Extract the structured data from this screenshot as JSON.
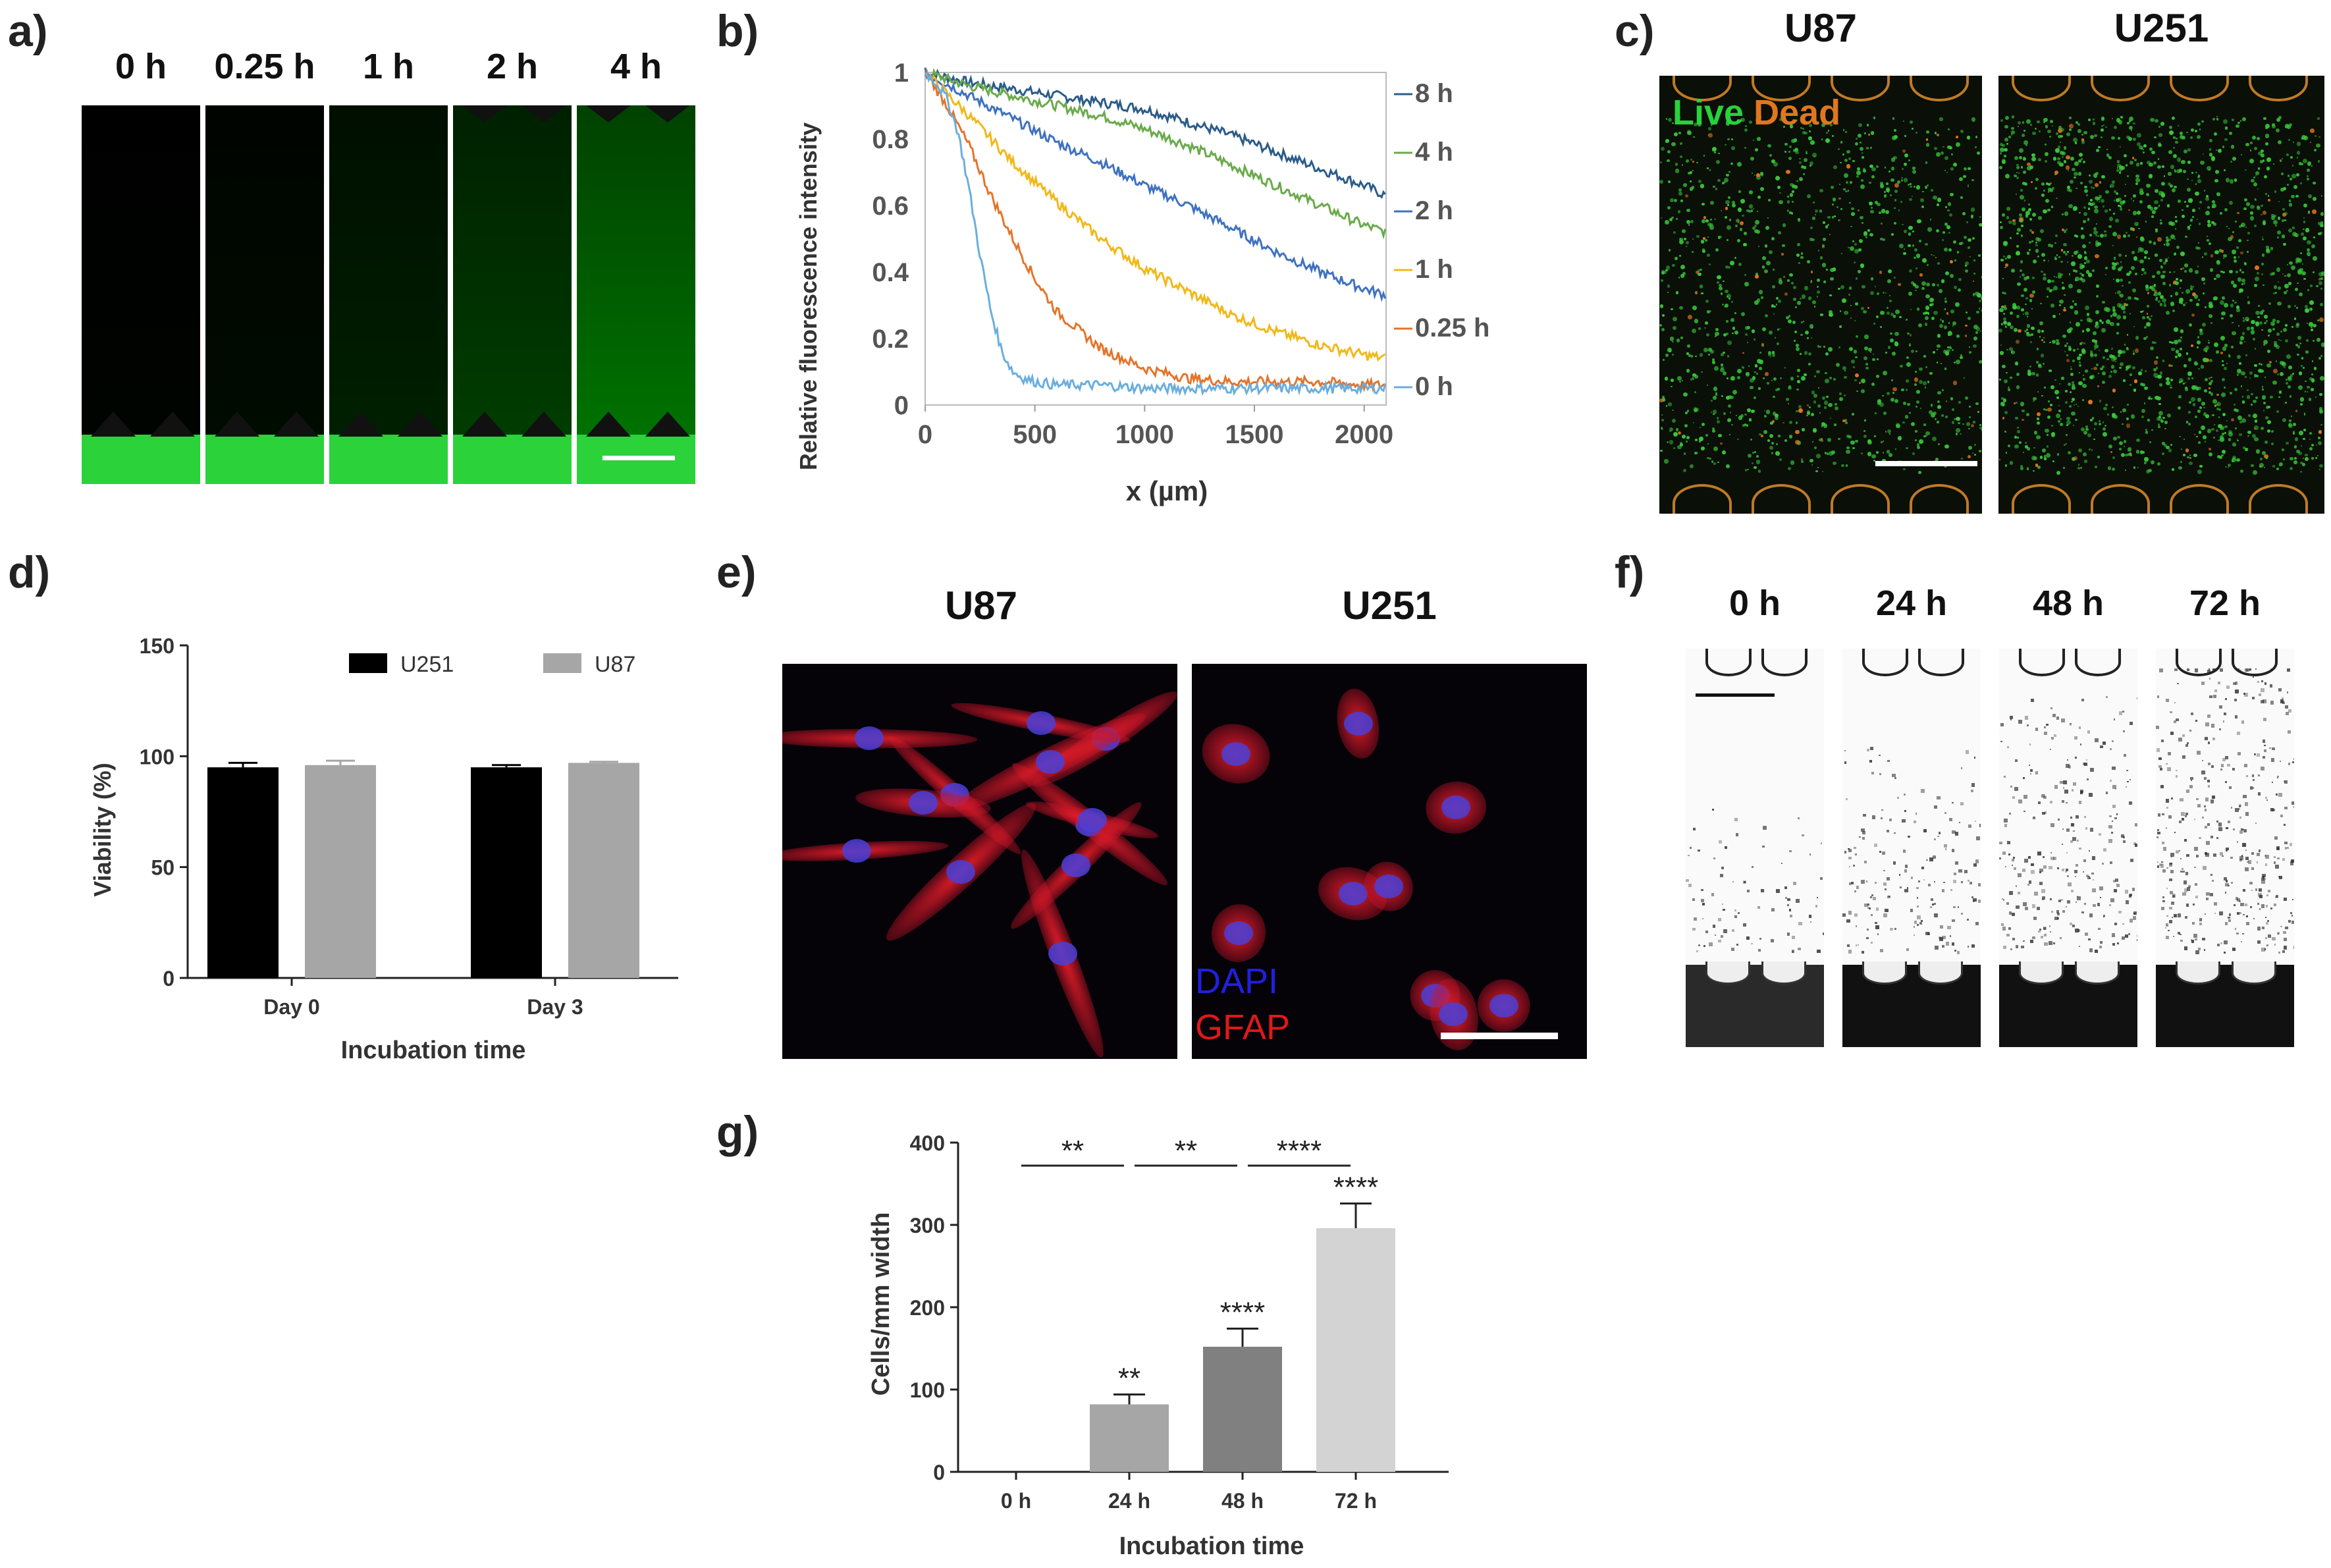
{
  "panel_labels": {
    "a": "a)",
    "b": "b)",
    "c": "c)",
    "d": "d)",
    "e": "e)",
    "f": "f)",
    "g": "g)"
  },
  "panel_a": {
    "time_labels": [
      "0 h",
      "0.25 h",
      "1 h",
      "2 h",
      "4 h"
    ],
    "levels": [
      0.0,
      0.12,
      0.3,
      0.48,
      0.72
    ]
  },
  "panel_b": {
    "chart_data": {
      "type": "line",
      "xlabel": "x (µm)",
      "ylabel": "Relative fluorescence intensity",
      "xlim": [
        0,
        2100
      ],
      "ylim": [
        0,
        1
      ],
      "x_ticks": [
        "0",
        "500",
        "1000",
        "1500",
        "2000"
      ],
      "y_ticks": [
        "0",
        "0.2",
        "0.4",
        "0.6",
        "0.8",
        "1"
      ],
      "legend_position": "right",
      "series": [
        {
          "name": "8 h",
          "color": "#2b5c8a",
          "x": [
            0,
            200,
            400,
            600,
            800,
            1000,
            1200,
            1400,
            1600,
            1800,
            2000,
            2100
          ],
          "values": [
            1.0,
            0.97,
            0.95,
            0.93,
            0.91,
            0.89,
            0.85,
            0.81,
            0.76,
            0.71,
            0.66,
            0.63
          ]
        },
        {
          "name": "4 h",
          "color": "#6aaa4a",
          "x": [
            0,
            200,
            400,
            600,
            800,
            1000,
            1200,
            1400,
            1600,
            1800,
            2000,
            2100
          ],
          "values": [
            1.0,
            0.96,
            0.93,
            0.9,
            0.87,
            0.83,
            0.78,
            0.72,
            0.66,
            0.6,
            0.54,
            0.52
          ]
        },
        {
          "name": "2 h",
          "color": "#3f72c0",
          "x": [
            0,
            200,
            400,
            600,
            800,
            1000,
            1200,
            1400,
            1600,
            1800,
            2000,
            2100
          ],
          "values": [
            1.0,
            0.93,
            0.86,
            0.79,
            0.73,
            0.66,
            0.6,
            0.53,
            0.46,
            0.4,
            0.35,
            0.33
          ]
        },
        {
          "name": "1 h",
          "color": "#f2b818",
          "x": [
            0,
            200,
            400,
            600,
            800,
            1000,
            1200,
            1400,
            1600,
            1800,
            2000,
            2100
          ],
          "values": [
            1.0,
            0.87,
            0.73,
            0.61,
            0.5,
            0.41,
            0.34,
            0.27,
            0.22,
            0.18,
            0.15,
            0.14
          ]
        },
        {
          "name": "0.25 h",
          "color": "#e4742a",
          "x": [
            0,
            100,
            200,
            300,
            400,
            500,
            600,
            800,
            1000,
            1200,
            1400,
            1600,
            1800,
            2000,
            2100
          ],
          "values": [
            1.0,
            0.9,
            0.78,
            0.63,
            0.5,
            0.38,
            0.28,
            0.17,
            0.11,
            0.08,
            0.07,
            0.07,
            0.07,
            0.06,
            0.06
          ]
        },
        {
          "name": "0 h",
          "color": "#6aaede",
          "x": [
            0,
            50,
            100,
            150,
            200,
            250,
            300,
            350,
            400,
            450,
            500,
            600,
            800,
            1000,
            1500,
            2000,
            2100
          ],
          "values": [
            1.0,
            0.97,
            0.92,
            0.82,
            0.65,
            0.45,
            0.28,
            0.16,
            0.1,
            0.08,
            0.07,
            0.06,
            0.06,
            0.05,
            0.05,
            0.05,
            0.05
          ]
        }
      ]
    }
  },
  "panel_c": {
    "titles": [
      "U87",
      "U251"
    ],
    "live_label": "Live",
    "dead_label": "Dead"
  },
  "panel_d": {
    "chart_data": {
      "type": "bar",
      "categories": [
        "Day 0",
        "Day 3"
      ],
      "series": [
        {
          "name": "U251",
          "color": "#000000",
          "values": [
            95,
            95
          ],
          "errors": [
            2,
            1
          ]
        },
        {
          "name": "U87",
          "color": "#a6a6a6",
          "values": [
            96,
            97
          ],
          "errors": [
            2,
            0.5
          ]
        }
      ],
      "ylabel": "Viability (%)",
      "xlabel": "Incubation time",
      "ylim": [
        0,
        150
      ],
      "y_ticks": [
        "0",
        "50",
        "100",
        "150"
      ],
      "legend_position": "top"
    }
  },
  "panel_e": {
    "titles": [
      "U87",
      "U251"
    ],
    "dapi_label": "DAPI",
    "gfap_label": "GFAP"
  },
  "panel_f": {
    "time_labels": [
      "0 h",
      "24 h",
      "48 h",
      "72 h"
    ],
    "density": [
      0.05,
      0.25,
      0.45,
      0.7
    ]
  },
  "panel_g": {
    "chart_data": {
      "type": "bar",
      "categories": [
        "0 h",
        "24 h",
        "48 h",
        "72 h"
      ],
      "values": [
        0,
        82,
        152,
        296
      ],
      "errors": [
        0,
        12,
        22,
        30
      ],
      "colors": [
        "#ffffff",
        "#a6a6a6",
        "#808080",
        "#d3d3d3"
      ],
      "significance_above_bars": [
        "",
        "**",
        "****",
        "****"
      ],
      "pairwise_significance": [
        "**",
        "**",
        "****"
      ],
      "ylabel": "Cells/mm width",
      "xlabel": "Incubation time",
      "ylim": [
        0,
        400
      ],
      "y_ticks": [
        "0",
        "100",
        "200",
        "300",
        "400"
      ]
    }
  }
}
